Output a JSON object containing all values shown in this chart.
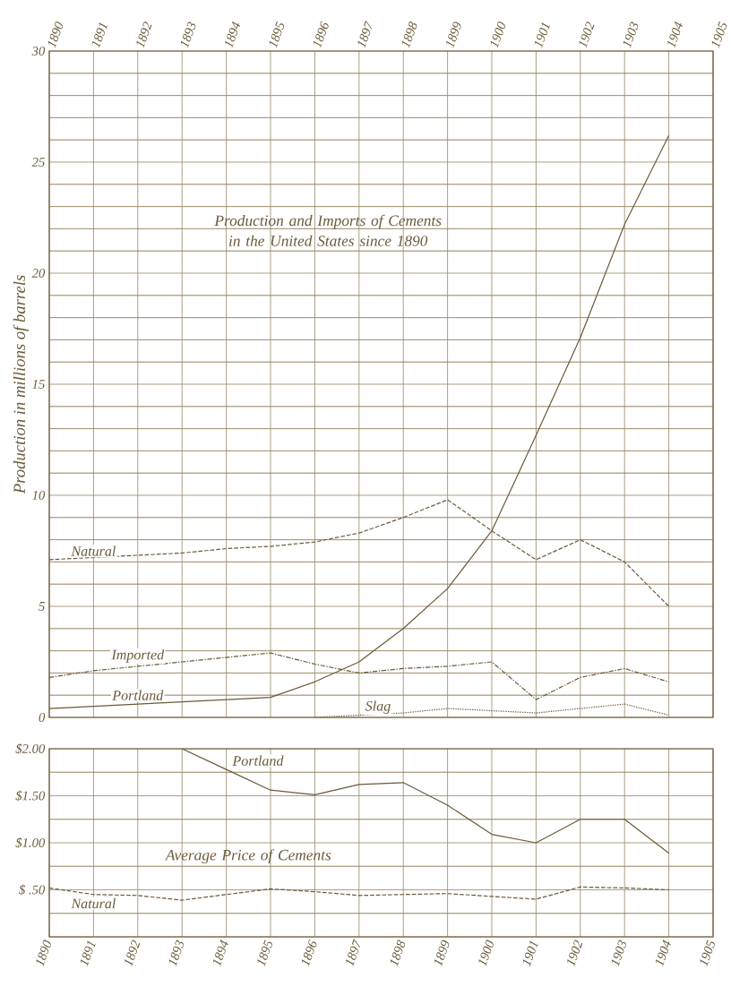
{
  "chart_data": [
    {
      "type": "line",
      "title": "Production and Imports of Cements in the United States since 1890",
      "ylabel": "Production in millions of barrels",
      "x": [
        1890,
        1891,
        1892,
        1893,
        1894,
        1895,
        1896,
        1897,
        1898,
        1899,
        1900,
        1901,
        1902,
        1903,
        1904
      ],
      "xlim": [
        1890,
        1905
      ],
      "xticks": [
        1890,
        1891,
        1892,
        1893,
        1894,
        1895,
        1896,
        1897,
        1898,
        1899,
        1900,
        1901,
        1902,
        1903,
        1904,
        1905
      ],
      "ylim": [
        0,
        30
      ],
      "yticks": [
        0,
        {
          "value": 1,
          "label": null
        },
        {
          "value": 2,
          "label": null
        },
        {
          "value": 3,
          "label": null
        },
        {
          "value": 4,
          "label": null
        },
        5,
        {
          "value": 6,
          "label": null
        },
        {
          "value": 7,
          "label": null
        },
        {
          "value": 8,
          "label": null
        },
        {
          "value": 9,
          "label": null
        },
        10,
        {
          "value": 11,
          "label": null
        },
        {
          "value": 12,
          "label": null
        },
        {
          "value": 13,
          "label": null
        },
        {
          "value": 14,
          "label": null
        },
        15,
        {
          "value": 16,
          "label": null
        },
        {
          "value": 17,
          "label": null
        },
        {
          "value": 18,
          "label": null
        },
        {
          "value": 19,
          "label": null
        },
        20,
        {
          "value": 21,
          "label": null
        },
        {
          "value": 22,
          "label": null
        },
        {
          "value": 23,
          "label": null
        },
        {
          "value": 24,
          "label": null
        },
        25,
        {
          "value": 26,
          "label": null
        },
        {
          "value": 27,
          "label": null
        },
        {
          "value": 28,
          "label": null
        },
        {
          "value": 29,
          "label": null
        },
        30
      ],
      "grid": true,
      "legend": false,
      "marker": "none",
      "series": [
        {
          "name": "Natural",
          "color": "#6b5a3a",
          "line_style": "dashed",
          "values": [
            7.1,
            7.2,
            7.3,
            7.4,
            7.6,
            7.7,
            7.9,
            8.3,
            9.0,
            9.8,
            8.4,
            7.1,
            8.0,
            7.0,
            5.0
          ]
        },
        {
          "name": "Imported",
          "color": "#6b5a3a",
          "line_style": "dashdot",
          "values": [
            1.8,
            2.1,
            2.3,
            2.5,
            2.7,
            2.9,
            2.4,
            2.0,
            2.2,
            2.3,
            2.5,
            0.8,
            1.8,
            2.2,
            1.6
          ]
        },
        {
          "name": "Portland",
          "color": "#6b5a3a",
          "line_style": "solid",
          "values": [
            0.4,
            0.5,
            0.6,
            0.7,
            0.8,
            0.9,
            1.6,
            2.5,
            4.0,
            5.8,
            8.4,
            12.7,
            17.1,
            22.2,
            26.2
          ]
        },
        {
          "name": "Slag",
          "color": "#6b5a3a",
          "line_style": "dotted",
          "values": [
            null,
            null,
            null,
            null,
            null,
            null,
            0.0,
            0.1,
            0.2,
            0.4,
            0.3,
            0.2,
            0.4,
            0.6,
            0.1
          ]
        }
      ]
    },
    {
      "type": "line",
      "title": "Average Price of Cements",
      "x": [
        1890,
        1891,
        1892,
        1893,
        1894,
        1895,
        1896,
        1897,
        1898,
        1899,
        1900,
        1901,
        1902,
        1903,
        1904
      ],
      "xlim": [
        1890,
        1905
      ],
      "xticks": [
        1890,
        1891,
        1892,
        1893,
        1894,
        1895,
        1896,
        1897,
        1898,
        1899,
        1900,
        1901,
        1902,
        1903,
        1904,
        1905
      ],
      "ylim": [
        0,
        2
      ],
      "yticks": [
        {
          "value": 0,
          "label": null
        },
        {
          "value": 0.25,
          "label": null
        },
        {
          "value": 0.5,
          "label": "$ .50"
        },
        {
          "value": 0.75,
          "label": null
        },
        {
          "value": 1,
          "label": "$1.00"
        },
        {
          "value": 1.25,
          "label": null
        },
        {
          "value": 1.5,
          "label": "$1.50"
        },
        {
          "value": 1.75,
          "label": null
        },
        {
          "value": 2,
          "label": "$2.00"
        }
      ],
      "grid": true,
      "legend": false,
      "marker": "none",
      "series": [
        {
          "name": "Portland",
          "color": "#6b5a3a",
          "line_style": "solid",
          "values": [
            null,
            null,
            null,
            2.0,
            1.78,
            1.56,
            1.51,
            1.62,
            1.64,
            1.4,
            1.09,
            1.0,
            1.25,
            1.25,
            0.89
          ]
        },
        {
          "name": "Natural",
          "color": "#6b5a3a",
          "line_style": "dashed",
          "values": [
            0.52,
            0.45,
            0.44,
            0.39,
            0.45,
            0.51,
            0.48,
            0.44,
            0.45,
            0.46,
            0.43,
            0.4,
            0.53,
            0.52,
            0.5
          ]
        }
      ]
    }
  ]
}
